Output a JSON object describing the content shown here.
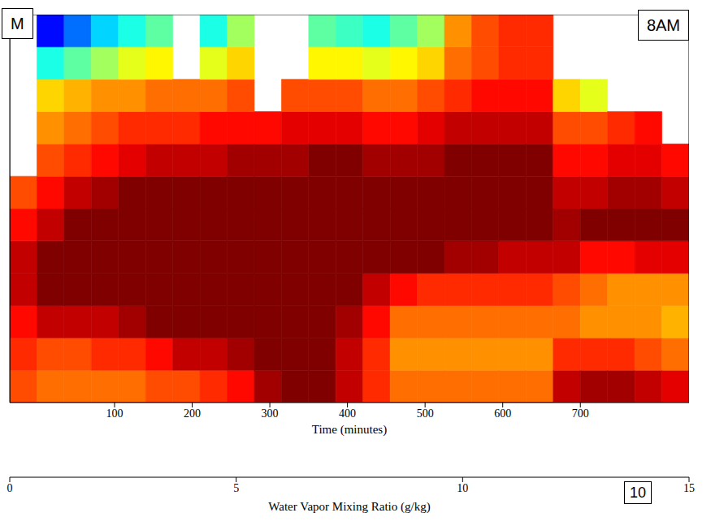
{
  "chart_data": {
    "type": "heatmap",
    "x_label": "Time (minutes)",
    "xlim": [
      -35,
      840
    ],
    "xticks": [
      100,
      200,
      300,
      400,
      500,
      600,
      700
    ],
    "ylim": [
      0,
      3
    ],
    "tick_labels": "x",
    "x_bins": [
      -35,
      0,
      35,
      70,
      105,
      140,
      175,
      210,
      245,
      280,
      315,
      350,
      385,
      420,
      455,
      490,
      525,
      560,
      595,
      630,
      665,
      700,
      735,
      770,
      805,
      840
    ],
    "y_bins": [
      0,
      0.25,
      0.5,
      0.75,
      1,
      1.25,
      1.5,
      1.75,
      2,
      2.25,
      2.5,
      2.75,
      3
    ],
    "values": [
      [
        12,
        12.5,
        13,
        14,
        14,
        13,
        12,
        null,
        null,
        null,
        null,
        null
      ],
      [
        11.5,
        12,
        14,
        15,
        15,
        14,
        13,
        12,
        11,
        10,
        6,
        2
      ],
      [
        11.5,
        12,
        14,
        15,
        15,
        15,
        14,
        12.5,
        11.5,
        10.5,
        7,
        3.5
      ],
      [
        11.5,
        12.5,
        14,
        15,
        15,
        15,
        14.5,
        13,
        12,
        11,
        8,
        5
      ],
      [
        11.5,
        12.5,
        14.5,
        15,
        15,
        15,
        15,
        13.5,
        12.5,
        11,
        9,
        6
      ],
      [
        12,
        13,
        15,
        15,
        15,
        15,
        15,
        14,
        12.5,
        11.5,
        9.5,
        7
      ],
      [
        12,
        14,
        15,
        15,
        15,
        15,
        15,
        14,
        12.5,
        11.5,
        null,
        null
      ],
      [
        12.5,
        14,
        15,
        15,
        15,
        15,
        15,
        14,
        13,
        11.5,
        9,
        6
      ],
      [
        13,
        14.5,
        15,
        15,
        15,
        15,
        15,
        14.5,
        13,
        12,
        10,
        8
      ],
      [
        14.5,
        15,
        15,
        15,
        15,
        15,
        15,
        14.5,
        13,
        null,
        null,
        null
      ],
      [
        15,
        15,
        15,
        15,
        15,
        15,
        15,
        14.5,
        13.5,
        12,
        null,
        null
      ],
      [
        15,
        15,
        15,
        15,
        15,
        15,
        15,
        15,
        13.5,
        12,
        9.5,
        7
      ],
      [
        14,
        14,
        14.5,
        15,
        15,
        15,
        15,
        15,
        13.5,
        12,
        9.5,
        6.5
      ],
      [
        12.5,
        12.5,
        13,
        14,
        15,
        15,
        15,
        14.5,
        13,
        11.5,
        9,
        6
      ],
      [
        11.5,
        11,
        11.5,
        13,
        15,
        15,
        15,
        14.5,
        13,
        11.5,
        9.5,
        7
      ],
      [
        11.5,
        11,
        11.5,
        12.5,
        15,
        15,
        15,
        14.5,
        13.5,
        12,
        10,
        8
      ],
      [
        11.5,
        11,
        11.5,
        12.5,
        14.5,
        15,
        15,
        15,
        14,
        12.5,
        11.5,
        11
      ],
      [
        11.5,
        11,
        11.5,
        12.5,
        14.5,
        15,
        15,
        15,
        14,
        13,
        12,
        12
      ],
      [
        11.5,
        11,
        11.5,
        12.5,
        14,
        15,
        15,
        15,
        14,
        13,
        12.5,
        12.5
      ],
      [
        11.5,
        11,
        11.5,
        12.5,
        14,
        15,
        15,
        15,
        14,
        13,
        12.5,
        12.5
      ],
      [
        14,
        12.5,
        11.5,
        12,
        14,
        14.5,
        14,
        13,
        12,
        10,
        null,
        null
      ],
      [
        14.5,
        12.5,
        11,
        11.5,
        13,
        15,
        14,
        13,
        12,
        9,
        null,
        null
      ],
      [
        14.5,
        12.5,
        11,
        11,
        13,
        15,
        14.5,
        13.5,
        12.5,
        null,
        null,
        null
      ],
      [
        14,
        12,
        11,
        11,
        13.5,
        15,
        14.5,
        13.5,
        13,
        null,
        null,
        null
      ],
      [
        13.5,
        11.5,
        10.5,
        11,
        13.5,
        15,
        14,
        13,
        null,
        null,
        null,
        null
      ]
    ],
    "colorbar": {
      "label": "Water Vapor Mixing Ratio (g/kg)",
      "range": [
        0,
        15
      ],
      "ticks": [
        0,
        5,
        10,
        15
      ]
    },
    "annotations": [
      "M",
      "8AM",
      "10"
    ]
  }
}
